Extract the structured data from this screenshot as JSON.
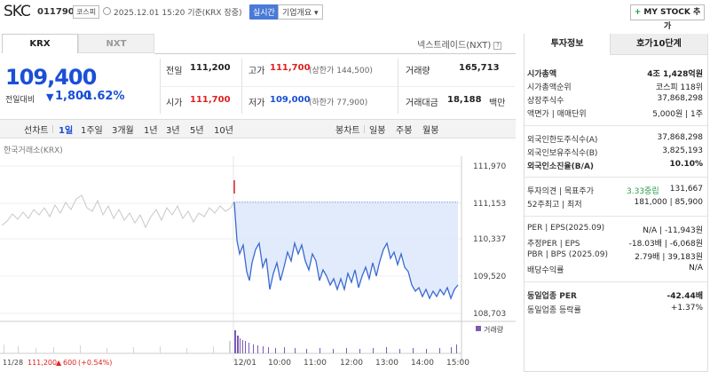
{
  "header": {
    "name": "SKC",
    "code": "011790",
    "market": "코스피",
    "datetime": "2025.12.01 15:20 기준(KRX 장중)",
    "realtime": "실시간",
    "company_overview": "기업개요 ▾",
    "mystock": "MY STOCK 추가",
    "mystock_plus": "+"
  },
  "tabs": {
    "krx": "KRX",
    "nxt": "NXT",
    "nxt_link": "넥스트레이드(NXT)",
    "help": "?"
  },
  "price": {
    "current": "109,400",
    "change_label": "전일대비",
    "change_arrow": "▼",
    "change_value": "1,800",
    "change_pct": "-1.62%"
  },
  "stats": {
    "prev_label": "전일",
    "prev_value": "111,200",
    "open_label": "시가",
    "open_value": "111,700",
    "high_label": "고가",
    "high_value": "111,700",
    "high_sub": "(상한가 144,500)",
    "low_label": "저가",
    "low_value": "109,000",
    "low_sub": "(하한가 77,900)",
    "volume_label": "거래량",
    "volume_value": "165,713",
    "amount_label": "거래대금",
    "amount_value": "18,188",
    "amount_unit": "백만"
  },
  "period": {
    "items": [
      "선차트",
      "1일",
      "1주일",
      "3개월",
      "1년",
      "3년",
      "5년",
      "10년"
    ],
    "right_items": [
      "봉차트",
      "일봉",
      "주봉",
      "월봉"
    ]
  },
  "chart_source": "한국거래소(KRX)",
  "chart_data": {
    "type": "line",
    "y_ticks": [
      "111,970",
      "111,153",
      "110,337",
      "109,520",
      "108,703"
    ],
    "x_ticks": [
      "12/01",
      "10:00",
      "11:00",
      "12:00",
      "13:00",
      "14:00",
      "15:00"
    ],
    "volume_label": "거래량",
    "bottom_info": {
      "date": "11/28",
      "price": "111,200",
      "arrow": "▲",
      "change": "600",
      "pct": "(+0.54%)"
    }
  },
  "right_panel": {
    "tab_info": "투자정보",
    "tab_quote": "호가10단계",
    "section1": [
      {
        "label": "시가총액",
        "value": "4조 1,428억원",
        "bold": true
      },
      {
        "label": "시가총액순위",
        "value": "코스피 118위"
      },
      {
        "label": "상장주식수",
        "value": "37,868,298"
      },
      {
        "label": "액면가 | 매매단위",
        "value": "5,000원 | 1주"
      }
    ],
    "section2": [
      {
        "label": "외국인한도주식수(A)",
        "value": "37,868,298"
      },
      {
        "label": "외국인보유주식수(B)",
        "value": "3,825,193"
      },
      {
        "label": "외국인소진율(B/A)",
        "value": "10.10%",
        "bold": true
      }
    ],
    "section3": [
      {
        "label": "투자의견 | 목표주가",
        "opinion": "3.33중립",
        "value": "131,667"
      },
      {
        "label": "52주최고 | 최저",
        "value": "181,000 | 85,900"
      }
    ],
    "section4": [
      {
        "label": "PER | EPS(2025.09)",
        "value": "N/A | -11,943원"
      },
      {
        "label": "추정PER | EPS",
        "value": "-18.03배 | -6,068원"
      },
      {
        "label": "PBR | BPS (2025.09)",
        "value": "2.79배 | 39,183원"
      },
      {
        "label": "배당수익률",
        "value": "N/A"
      }
    ],
    "section5": [
      {
        "label": "동일업종 PER",
        "value": "-42.44배",
        "bold": true
      },
      {
        "label": "동일업종 등락률",
        "value": "+1.37%",
        "red": true
      }
    ]
  }
}
